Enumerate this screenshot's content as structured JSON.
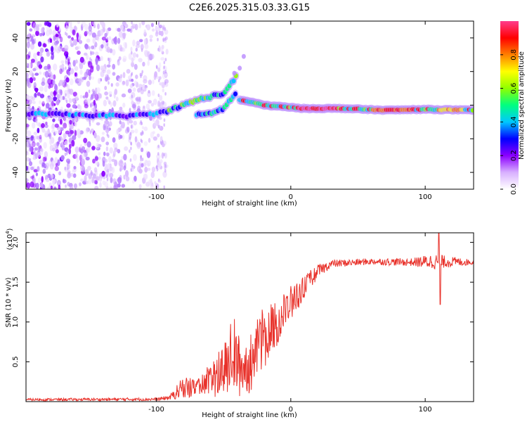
{
  "chart_data": [
    {
      "type": "heatmap",
      "title": "C2E6.2025.315.03.33.G15",
      "xlabel": "Height of straight line (km)",
      "ylabel": "Frequency (Hz)",
      "xlim": [
        -197,
        136
      ],
      "ylim": [
        -50,
        50
      ],
      "xticks": [
        -100,
        0,
        100
      ],
      "yticks": [
        -40,
        -20,
        0,
        20,
        40
      ],
      "colorbar": {
        "label": "Normalized spectral amplitude",
        "range": [
          0,
          1
        ],
        "ticks": [
          "0.0",
          "0.2",
          "0.4",
          "0.6",
          "0.8"
        ],
        "colors": [
          "#ffffff",
          "#d8b0ff",
          "#8c00ff",
          "#0000ff",
          "#00c8ff",
          "#00ff80",
          "#90ff00",
          "#ffff00",
          "#ff8000",
          "#ff0000",
          "#ff3c8c"
        ]
      },
      "ridge": [
        {
          "x": -197,
          "y": -5
        },
        {
          "x": -150,
          "y": -6
        },
        {
          "x": -120,
          "y": -6.5
        },
        {
          "x": -100,
          "y": -5
        },
        {
          "x": -90,
          "y": -3
        },
        {
          "x": -80,
          "y": 0
        },
        {
          "x": -70,
          "y": 3
        },
        {
          "x": -60,
          "y": 5
        },
        {
          "x": -50,
          "y": 7
        },
        {
          "x": -45,
          "y": 12
        },
        {
          "x": -40,
          "y": 18
        }
      ],
      "branch": [
        {
          "x": -70,
          "y": -6
        },
        {
          "x": -60,
          "y": -5
        },
        {
          "x": -50,
          "y": -2
        },
        {
          "x": -45,
          "y": 3
        },
        {
          "x": -40,
          "y": 8
        }
      ],
      "signal": [
        {
          "x": -38,
          "y": 3
        },
        {
          "x": -30,
          "y": 2
        },
        {
          "x": -20,
          "y": 0
        },
        {
          "x": -5,
          "y": -1
        },
        {
          "x": 10,
          "y": -2
        },
        {
          "x": 40,
          "y": -2
        },
        {
          "x": 70,
          "y": -3
        },
        {
          "x": 100,
          "y": -2.5
        },
        {
          "x": 136,
          "y": -3
        }
      ]
    },
    {
      "type": "line",
      "xlabel": "Height of straight line (km)",
      "ylabel": "SNR (10 * v/v)",
      "multiplier": "(x10",
      "multiplier_exp": "4",
      "multiplier_close": ")",
      "xlim": [
        -197,
        136
      ],
      "ylim": [
        0,
        2.12
      ],
      "xticks": [
        -100,
        0,
        100
      ],
      "yticks": [
        "0.5",
        "1.0",
        "1.5",
        "2.0"
      ],
      "series": [
        {
          "name": "SNR",
          "color": "#e8312a",
          "envelope": [
            {
              "x": -197,
              "low": 0.01,
              "high": 0.04
            },
            {
              "x": -100,
              "low": 0.01,
              "high": 0.05
            },
            {
              "x": -90,
              "low": 0.02,
              "high": 0.08
            },
            {
              "x": -85,
              "low": 0.03,
              "high": 0.2
            },
            {
              "x": -80,
              "low": 0.05,
              "high": 0.32
            },
            {
              "x": -70,
              "low": 0.05,
              "high": 0.3
            },
            {
              "x": -60,
              "low": 0.05,
              "high": 0.5
            },
            {
              "x": -50,
              "low": 0.05,
              "high": 0.7
            },
            {
              "x": -43,
              "low": 0.05,
              "high": 1.12
            },
            {
              "x": -38,
              "low": 0.05,
              "high": 0.8
            },
            {
              "x": -30,
              "low": 0.1,
              "high": 0.85
            },
            {
              "x": -26,
              "low": 0.3,
              "high": 1.0
            },
            {
              "x": -20,
              "low": 0.4,
              "high": 1.2
            },
            {
              "x": -10,
              "low": 0.7,
              "high": 1.3
            },
            {
              "x": 0,
              "low": 1.0,
              "high": 1.45
            },
            {
              "x": 10,
              "low": 1.3,
              "high": 1.6
            },
            {
              "x": 20,
              "low": 1.55,
              "high": 1.72
            },
            {
              "x": 30,
              "low": 1.68,
              "high": 1.78
            },
            {
              "x": 60,
              "low": 1.72,
              "high": 1.8
            },
            {
              "x": 90,
              "low": 1.7,
              "high": 1.8
            },
            {
              "x": 105,
              "low": 1.66,
              "high": 1.86
            },
            {
              "x": 136,
              "low": 1.72,
              "high": 1.78
            }
          ],
          "spikes": [
            {
              "x": 110,
              "value": 2.12
            },
            {
              "x": 111,
              "value": 1.22
            }
          ]
        }
      ]
    }
  ]
}
